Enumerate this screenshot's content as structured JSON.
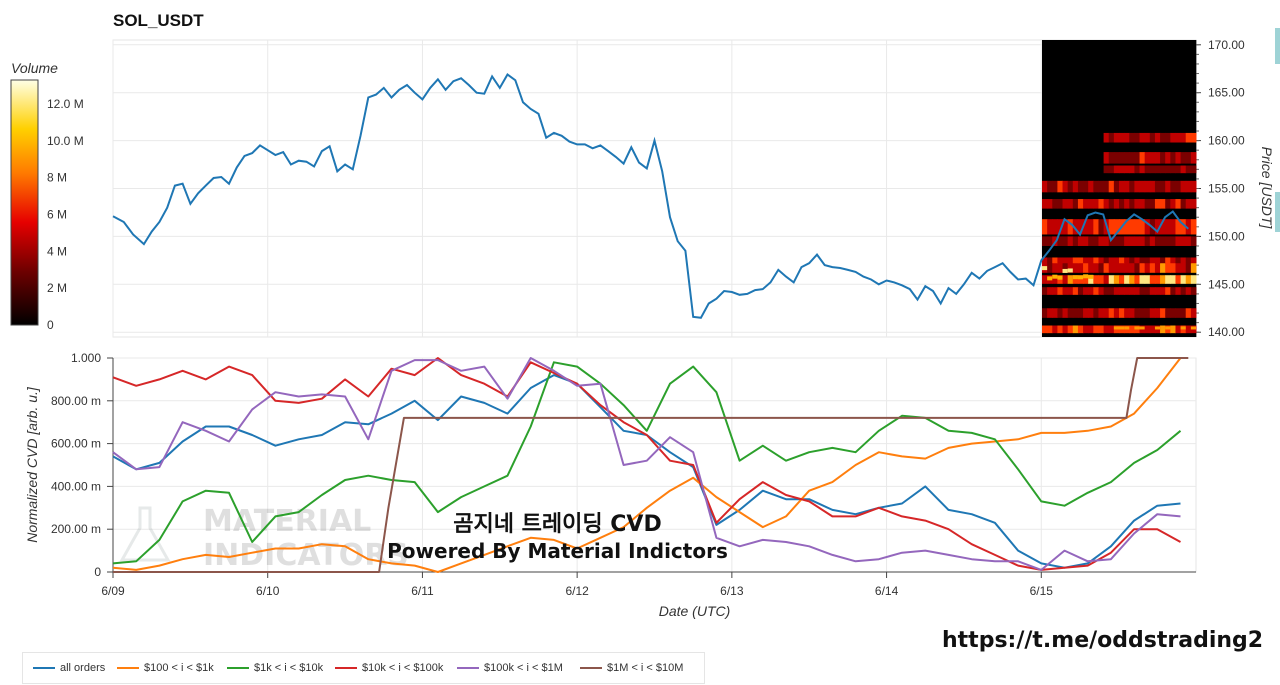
{
  "title": "SOL_USDT",
  "colorbar": {
    "title": "Volume",
    "ticks": [
      {
        "label": "12.0 M",
        "value": 12
      },
      {
        "label": "10.0 M",
        "value": 10
      },
      {
        "label": "8 M",
        "value": 8
      },
      {
        "label": "6 M",
        "value": 6
      },
      {
        "label": "4 M",
        "value": 4
      },
      {
        "label": "2 M",
        "value": 2
      },
      {
        "label": "0",
        "value": 0
      }
    ],
    "range": [
      0,
      13.3
    ]
  },
  "overlay": {
    "cvd_text": "곰지네 트레이딩 CVD",
    "powered_text": "Powered By Material Indictors",
    "watermark_lines": [
      "MATERIAL",
      "INDICATORS"
    ]
  },
  "url_text": "https://t.me/oddstrading2",
  "chart_data": [
    {
      "type": "line",
      "title": "SOL_USDT",
      "ylabel": "Price [USDT]",
      "xlabel": "",
      "xlim": [
        0,
        7
      ],
      "ylim": [
        139.5,
        170.5
      ],
      "yticks": [
        {
          "label": "170.00",
          "value": 170
        },
        {
          "label": "165.00",
          "value": 165
        },
        {
          "label": "160.00",
          "value": 160
        },
        {
          "label": "155.00",
          "value": 155
        },
        {
          "label": "150.00",
          "value": 150
        },
        {
          "label": "145.00",
          "value": 145
        },
        {
          "label": "140.00",
          "value": 140
        }
      ],
      "grid": true,
      "series": [
        {
          "color": "#1f77b4",
          "x": [
            0,
            0.07,
            0.13,
            0.2,
            0.25,
            0.3,
            0.35,
            0.4,
            0.45,
            0.5,
            0.55,
            0.6,
            0.65,
            0.7,
            0.75,
            0.8,
            0.85,
            0.9,
            0.95,
            1.0,
            1.05,
            1.1,
            1.15,
            1.2,
            1.25,
            1.3,
            1.35,
            1.4,
            1.45,
            1.5,
            1.55,
            1.6,
            1.65,
            1.7,
            1.75,
            1.8,
            1.85,
            1.9,
            1.95,
            2.0,
            2.05,
            2.1,
            2.15,
            2.2,
            2.25,
            2.3,
            2.35,
            2.4,
            2.45,
            2.5,
            2.55,
            2.6,
            2.65,
            2.7,
            2.75,
            2.8,
            2.85,
            2.9,
            2.95,
            3.0,
            3.05,
            3.1,
            3.15,
            3.2,
            3.25,
            3.3,
            3.35,
            3.4,
            3.45,
            3.5,
            3.55,
            3.6,
            3.65,
            3.7,
            3.75,
            3.8,
            3.85,
            3.9,
            3.95,
            4.0,
            4.05,
            4.1,
            4.15,
            4.2,
            4.25,
            4.3,
            4.35,
            4.4,
            4.45,
            4.5,
            4.55,
            4.6,
            4.65,
            4.7,
            4.75,
            4.8,
            4.85,
            4.9,
            4.95,
            5.0,
            5.05,
            5.1,
            5.15,
            5.2,
            5.25,
            5.3,
            5.35,
            5.4,
            5.45,
            5.5,
            5.55,
            5.6,
            5.65,
            5.7,
            5.75,
            5.8,
            5.85,
            5.9,
            5.95,
            6.0,
            6.05,
            6.1,
            6.15,
            6.2,
            6.25,
            6.3,
            6.35,
            6.4,
            6.45,
            6.5,
            6.55,
            6.6,
            6.65,
            6.7,
            6.75,
            6.8,
            6.85,
            6.9,
            6.95
          ],
          "y": [
            152.1,
            151.5,
            150.2,
            149.2,
            150.5,
            151.5,
            153.0,
            155.3,
            155.5,
            153.4,
            154.5,
            155.3,
            156.1,
            156.2,
            155.5,
            157.2,
            158.4,
            158.7,
            159.5,
            159.0,
            158.5,
            158.8,
            157.5,
            157.9,
            157.8,
            157.3,
            158.9,
            159.4,
            156.8,
            157.5,
            157.0,
            160.5,
            164.5,
            164.8,
            165.5,
            164.5,
            165.3,
            165.8,
            165.0,
            164.3,
            165.5,
            166.4,
            165.3,
            166.2,
            166.5,
            165.8,
            165.0,
            164.9,
            166.7,
            165.5,
            166.9,
            166.3,
            164.0,
            163.3,
            162.8,
            160.3,
            160.8,
            160.5,
            159.9,
            159.6,
            159.6,
            159.2,
            159.5,
            158.9,
            158.3,
            157.6,
            159.3,
            157.7,
            157.1,
            160.0,
            156.8,
            152.0,
            149.5,
            148.5,
            141.6,
            141.5,
            143.0,
            143.5,
            144.3,
            144.2,
            143.9,
            144.0,
            144.4,
            144.5,
            145.2,
            146.5,
            145.8,
            145.2,
            146.8,
            147.2,
            148.1,
            147.0,
            146.8,
            146.7,
            146.5,
            146.3,
            145.8,
            145.5,
            145.0,
            145.4,
            145.2,
            144.9,
            144.5,
            143.4,
            144.8,
            144.3,
            143.0,
            144.6,
            144.0,
            145.0,
            146.2,
            145.6,
            146.4,
            146.8,
            147.2,
            146.3,
            145.5,
            145.6,
            144.9,
            147.5,
            148.5,
            149.6,
            151.8,
            151.2,
            150.2,
            152.2,
            152.5,
            152.3,
            149.6,
            150.6,
            151.6,
            152.3,
            151.8,
            151.2,
            150.5,
            152.0,
            152.6,
            151.5,
            150.8
          ]
        }
      ]
    },
    {
      "type": "line",
      "xlabel": "Date (UTC)",
      "ylabel": "Normalized CVD [arb. u.]",
      "xlim": [
        0,
        7
      ],
      "ylim": [
        0,
        1000
      ],
      "xticks": [
        {
          "label": "6/09",
          "value": 0
        },
        {
          "label": "6/10",
          "value": 1
        },
        {
          "label": "6/11",
          "value": 2
        },
        {
          "label": "6/12",
          "value": 3
        },
        {
          "label": "6/13",
          "value": 4
        },
        {
          "label": "6/14",
          "value": 5
        },
        {
          "label": "6/15",
          "value": 6
        }
      ],
      "yticks": [
        {
          "label": "1.000",
          "value": 1000
        },
        {
          "label": "800.00 m",
          "value": 800
        },
        {
          "label": "600.00 m",
          "value": 600
        },
        {
          "label": "400.00 m",
          "value": 400
        },
        {
          "label": "200.00 m",
          "value": 200
        },
        {
          "label": "0",
          "value": 0
        }
      ],
      "grid": true,
      "legend_position": "bottom-left",
      "series": [
        {
          "name": "all orders",
          "color": "#1f77b4",
          "x": [
            0,
            0.15,
            0.3,
            0.45,
            0.6,
            0.75,
            0.9,
            1.05,
            1.2,
            1.35,
            1.5,
            1.65,
            1.8,
            1.95,
            2.1,
            2.25,
            2.4,
            2.55,
            2.7,
            2.85,
            3.0,
            3.15,
            3.3,
            3.45,
            3.6,
            3.75,
            3.9,
            4.05,
            4.2,
            4.35,
            4.5,
            4.65,
            4.8,
            4.95,
            5.1,
            5.25,
            5.4,
            5.55,
            5.7,
            5.85,
            6.0,
            6.15,
            6.3,
            6.45,
            6.6,
            6.75,
            6.9
          ],
          "y": [
            540,
            480,
            510,
            610,
            680,
            680,
            640,
            590,
            620,
            640,
            700,
            690,
            740,
            800,
            710,
            820,
            790,
            740,
            860,
            920,
            880,
            770,
            660,
            640,
            560,
            490,
            220,
            290,
            380,
            340,
            340,
            290,
            270,
            300,
            320,
            400,
            290,
            270,
            230,
            100,
            40,
            20,
            40,
            120,
            240,
            310,
            320
          ]
        },
        {
          "name": "$100 < i < $1k",
          "color": "#ff7f0e",
          "x": [
            0,
            0.15,
            0.3,
            0.45,
            0.6,
            0.75,
            0.9,
            1.05,
            1.2,
            1.35,
            1.5,
            1.65,
            1.8,
            1.95,
            2.1,
            2.25,
            2.4,
            2.55,
            2.7,
            2.85,
            3.0,
            3.15,
            3.3,
            3.45,
            3.6,
            3.75,
            3.9,
            4.05,
            4.2,
            4.35,
            4.5,
            4.65,
            4.8,
            4.95,
            5.1,
            5.25,
            5.4,
            5.55,
            5.7,
            5.85,
            6.0,
            6.15,
            6.3,
            6.45,
            6.6,
            6.75,
            6.9
          ],
          "y": [
            20,
            10,
            30,
            60,
            80,
            70,
            90,
            110,
            110,
            130,
            120,
            60,
            40,
            30,
            0,
            40,
            80,
            120,
            160,
            150,
            110,
            160,
            210,
            300,
            380,
            440,
            350,
            280,
            210,
            260,
            380,
            420,
            500,
            560,
            540,
            530,
            580,
            600,
            610,
            620,
            650,
            650,
            660,
            680,
            740,
            860,
            1000
          ]
        },
        {
          "name": "$1k < i < $10k",
          "color": "#2ca02c",
          "x": [
            0,
            0.15,
            0.3,
            0.45,
            0.6,
            0.75,
            0.9,
            1.05,
            1.2,
            1.35,
            1.5,
            1.65,
            1.8,
            1.95,
            2.1,
            2.25,
            2.4,
            2.55,
            2.7,
            2.85,
            3.0,
            3.15,
            3.3,
            3.45,
            3.6,
            3.75,
            3.9,
            4.05,
            4.2,
            4.35,
            4.5,
            4.65,
            4.8,
            4.95,
            5.1,
            5.25,
            5.4,
            5.55,
            5.7,
            5.85,
            6.0,
            6.15,
            6.3,
            6.45,
            6.6,
            6.75,
            6.9
          ],
          "y": [
            40,
            50,
            150,
            330,
            380,
            370,
            140,
            260,
            280,
            360,
            430,
            450,
            430,
            420,
            280,
            350,
            400,
            450,
            680,
            980,
            960,
            880,
            780,
            660,
            880,
            960,
            840,
            520,
            590,
            520,
            560,
            580,
            560,
            660,
            730,
            720,
            660,
            650,
            620,
            480,
            330,
            310,
            370,
            420,
            510,
            570,
            660
          ]
        },
        {
          "name": "$10k < i < $100k",
          "color": "#d62728",
          "x": [
            0,
            0.15,
            0.3,
            0.45,
            0.6,
            0.75,
            0.9,
            1.05,
            1.2,
            1.35,
            1.5,
            1.65,
            1.8,
            1.95,
            2.1,
            2.25,
            2.4,
            2.55,
            2.7,
            2.85,
            3.0,
            3.15,
            3.3,
            3.45,
            3.6,
            3.75,
            3.9,
            4.05,
            4.2,
            4.35,
            4.5,
            4.65,
            4.8,
            4.95,
            5.1,
            5.25,
            5.4,
            5.55,
            5.7,
            5.85,
            6.0,
            6.15,
            6.3,
            6.45,
            6.6,
            6.75,
            6.9
          ],
          "y": [
            910,
            870,
            900,
            940,
            900,
            960,
            920,
            800,
            790,
            810,
            900,
            820,
            950,
            920,
            1000,
            920,
            880,
            820,
            980,
            930,
            880,
            780,
            700,
            640,
            520,
            500,
            230,
            340,
            420,
            360,
            330,
            260,
            260,
            300,
            260,
            240,
            200,
            130,
            80,
            30,
            10,
            20,
            30,
            90,
            200,
            200,
            140
          ]
        },
        {
          "name": "$100k < i < $1M",
          "color": "#9467bd",
          "x": [
            0,
            0.15,
            0.3,
            0.45,
            0.6,
            0.75,
            0.9,
            1.05,
            1.2,
            1.35,
            1.5,
            1.65,
            1.8,
            1.95,
            2.1,
            2.25,
            2.4,
            2.55,
            2.7,
            2.85,
            3.0,
            3.15,
            3.3,
            3.45,
            3.6,
            3.75,
            3.9,
            4.05,
            4.2,
            4.35,
            4.5,
            4.65,
            4.8,
            4.95,
            5.1,
            5.25,
            5.4,
            5.55,
            5.7,
            5.85,
            6.0,
            6.15,
            6.3,
            6.45,
            6.6,
            6.75,
            6.9
          ],
          "y": [
            560,
            480,
            490,
            700,
            660,
            610,
            760,
            840,
            820,
            830,
            820,
            620,
            940,
            990,
            990,
            940,
            960,
            810,
            1000,
            940,
            870,
            880,
            500,
            520,
            630,
            560,
            160,
            120,
            150,
            140,
            120,
            80,
            50,
            60,
            90,
            100,
            80,
            60,
            50,
            50,
            10,
            100,
            50,
            60,
            180,
            270,
            260
          ]
        },
        {
          "name": "$1M < i < $10M",
          "color": "#8c564b",
          "x": [
            0,
            1.72,
            1.78,
            1.88,
            6.5,
            6.55,
            6.58,
            6.62,
            6.95
          ],
          "y": [
            0,
            0,
            300,
            720,
            720,
            720,
            850,
            1000,
            1000
          ]
        }
      ]
    }
  ]
}
